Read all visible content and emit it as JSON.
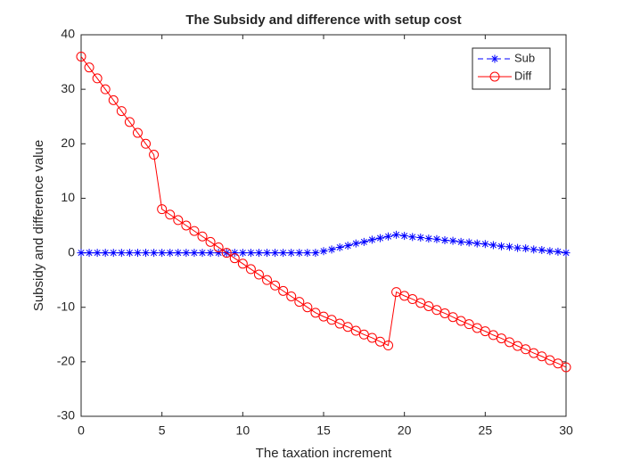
{
  "chart_data": {
    "type": "line",
    "title": "The Subsidy and difference with setup cost",
    "xlabel": "The taxation increment",
    "ylabel": "Subsidy and difference value",
    "x": [
      0,
      0.5,
      1,
      1.5,
      2,
      2.5,
      3,
      3.5,
      4,
      4.5,
      5,
      5.5,
      6,
      6.5,
      7,
      7.5,
      8,
      8.5,
      9,
      9.5,
      10,
      10.5,
      11,
      11.5,
      12,
      12.5,
      13,
      13.5,
      14,
      14.5,
      15,
      15.5,
      16,
      16.5,
      17,
      17.5,
      18,
      18.5,
      19,
      19.5,
      20,
      20.5,
      21,
      21.5,
      22,
      22.5,
      23,
      23.5,
      24,
      24.5,
      25,
      25.5,
      26,
      26.5,
      27,
      27.5,
      28,
      28.5,
      29,
      29.5,
      30
    ],
    "series": [
      {
        "name": "Sub",
        "color": "#0000ff",
        "marker": "star",
        "dash": true,
        "values": [
          0,
          0,
          0,
          0,
          0,
          0,
          0,
          0,
          0,
          0,
          0,
          0,
          0,
          0,
          0,
          0,
          0,
          0,
          0,
          0,
          0,
          0,
          0,
          0,
          0,
          0,
          0,
          0,
          0,
          0,
          0.3,
          0.6,
          1.0,
          1.3,
          1.7,
          2.0,
          2.4,
          2.7,
          3.0,
          3.3,
          3.1,
          2.9,
          2.8,
          2.6,
          2.5,
          2.3,
          2.2,
          2.0,
          1.9,
          1.7,
          1.6,
          1.4,
          1.2,
          1.1,
          0.9,
          0.8,
          0.6,
          0.5,
          0.3,
          0.2,
          0
        ]
      },
      {
        "name": "Diff",
        "color": "#ff0000",
        "marker": "circle",
        "dash": false,
        "values": [
          36,
          34,
          32,
          30,
          28,
          26,
          24,
          22,
          20,
          18,
          8,
          7,
          6,
          5,
          4,
          3,
          2,
          1,
          0,
          -1,
          -2,
          -3,
          -4,
          -5,
          -6,
          -7,
          -8,
          -9,
          -10,
          -11,
          -11.7,
          -12.3,
          -13,
          -13.6,
          -14.3,
          -15,
          -15.6,
          -16.3,
          -17,
          -7.2,
          -7.9,
          -8.5,
          -9.2,
          -9.8,
          -10.5,
          -11.1,
          -11.8,
          -12.5,
          -13.1,
          -13.8,
          -14.4,
          -15.1,
          -15.7,
          -16.4,
          -17.1,
          -17.7,
          -18.4,
          -19.0,
          -19.7,
          -20.3,
          -21
        ]
      }
    ],
    "xlim": [
      0,
      30
    ],
    "xticks": [
      0,
      5,
      10,
      15,
      20,
      25,
      30
    ],
    "ylim": [
      -30,
      40
    ],
    "yticks": [
      -30,
      -20,
      -10,
      0,
      10,
      20,
      30,
      40
    ],
    "legend": "top-right",
    "grid": false
  }
}
